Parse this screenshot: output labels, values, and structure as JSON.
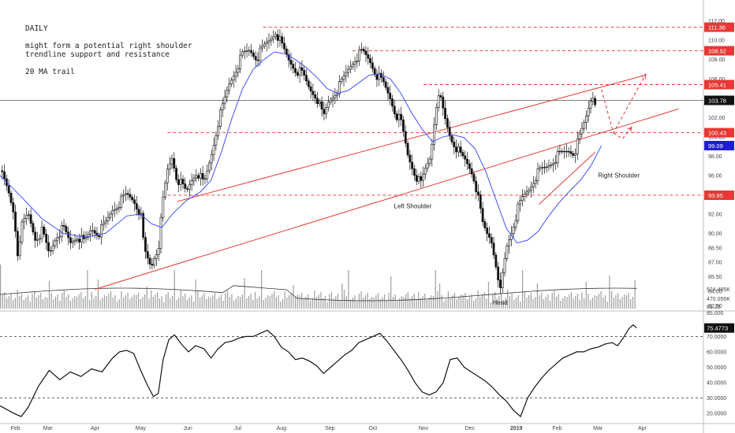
{
  "annotation": {
    "timeframe": "DAILY",
    "line1": "might form a potential right shoulder",
    "line2": "trendline support and resistance",
    "line3": "20 MA trail"
  },
  "chart_data": {
    "type": "candlestick",
    "price_axis": {
      "range": [
        82.2,
        113.2
      ],
      "ticks": [
        "112.00",
        "110.00",
        "108.00",
        "106.00",
        "104.00",
        "102.00",
        "100.00",
        "98.00",
        "96.00",
        "94.00",
        "92.00",
        "90.00",
        "88.50",
        "87.00",
        "85.50",
        "84.00",
        "82.50"
      ],
      "tick_values": [
        112,
        110,
        108,
        106,
        104,
        102,
        100,
        98,
        96,
        94,
        92,
        90,
        88.5,
        87,
        85.5,
        84,
        82.5
      ]
    },
    "volume_axis": {
      "ticks": [
        "524.485K",
        "470.056K"
      ],
      "label_top": "85.000",
      "label_bot": "81.25"
    },
    "rsi_axis": {
      "range": [
        15,
        85
      ],
      "ticks": [
        "75.4773",
        "70.0000",
        "60.0000",
        "50.0000",
        "40.0000",
        "30.0000",
        "20.0000"
      ],
      "tick_values": [
        75.4773,
        70,
        60,
        50,
        40,
        30,
        20
      ],
      "overbought": 70,
      "oversold": 30
    },
    "x_labels": [
      "Feb",
      "Mar",
      "Apr",
      "May",
      "Jun",
      "Jul",
      "Aug",
      "Sep",
      "Oct",
      "Nov",
      "Dec",
      "2019",
      "Feb",
      "Mar",
      "Apr"
    ],
    "x_label_pos": [
      0.022,
      0.068,
      0.135,
      0.2,
      0.267,
      0.338,
      0.4,
      0.469,
      0.53,
      0.602,
      0.668,
      0.734,
      0.792,
      0.85,
      0.913
    ],
    "horizontal_levels": [
      {
        "value": 111.36,
        "label": "111.36",
        "x0": 0.374
      },
      {
        "value": 108.92,
        "label": "108.92",
        "x0": 0.501
      },
      {
        "value": 105.41,
        "label": "105.41",
        "x0": 0.602
      },
      {
        "value": 100.43,
        "label": "100.43",
        "x0": 0.238
      },
      {
        "value": 93.95,
        "label": "93.95",
        "x0": 0.238
      }
    ],
    "current_price": {
      "value": 103.78,
      "label": "103.78"
    },
    "ma_badge": {
      "value": 99.09,
      "label": "99.09"
    },
    "trendlines": [
      {
        "from": [
          0.252,
          93.3
        ],
        "to": [
          0.918,
          106.4
        ],
        "color": "#e53935"
      },
      {
        "from": [
          0.135,
          84.2
        ],
        "to": [
          0.965,
          102.9
        ],
        "color": "#e53935"
      },
      {
        "from": [
          0.766,
          93.0
        ],
        "to": [
          0.846,
          98.4
        ],
        "color": "#e53935"
      }
    ],
    "projections": [
      {
        "points": [
          [
            0.855,
            104.9
          ],
          [
            0.872,
            100.4
          ],
          [
            0.918,
            106.5
          ]
        ],
        "color": "#e53935"
      },
      {
        "points": [
          [
            0.872,
            100.4
          ],
          [
            0.885,
            99.8
          ],
          [
            0.898,
            101.0
          ]
        ],
        "color": "#e53935"
      }
    ],
    "labels": {
      "left_shoulder": "Left Shoulder",
      "head": "Head",
      "right_shoulder": "Right Shoulder"
    },
    "price_path": [
      [
        0.0,
        96.5
      ],
      [
        0.012,
        94.2
      ],
      [
        0.02,
        92.0
      ],
      [
        0.025,
        88.0
      ],
      [
        0.03,
        90.5
      ],
      [
        0.04,
        92.0
      ],
      [
        0.05,
        89.5
      ],
      [
        0.06,
        90.2
      ],
      [
        0.07,
        87.8
      ],
      [
        0.08,
        89.8
      ],
      [
        0.09,
        90.5
      ],
      [
        0.1,
        89.0
      ],
      [
        0.11,
        89.8
      ],
      [
        0.12,
        89.0
      ],
      [
        0.13,
        90.5
      ],
      [
        0.14,
        90.0
      ],
      [
        0.15,
        91.0
      ],
      [
        0.16,
        92.5
      ],
      [
        0.17,
        93.2
      ],
      [
        0.18,
        94.0
      ],
      [
        0.19,
        93.5
      ],
      [
        0.2,
        92.0
      ],
      [
        0.205,
        88.2
      ],
      [
        0.21,
        87.3
      ],
      [
        0.215,
        86.5
      ],
      [
        0.22,
        87.8
      ],
      [
        0.225,
        88.5
      ],
      [
        0.232,
        93.5
      ],
      [
        0.238,
        96.5
      ],
      [
        0.245,
        98.0
      ],
      [
        0.25,
        96.0
      ],
      [
        0.258,
        95.0
      ],
      [
        0.265,
        94.2
      ],
      [
        0.272,
        95.5
      ],
      [
        0.28,
        96.5
      ],
      [
        0.29,
        95.0
      ],
      [
        0.3,
        98.0
      ],
      [
        0.31,
        101.5
      ],
      [
        0.318,
        103.5
      ],
      [
        0.326,
        105.5
      ],
      [
        0.335,
        107.0
      ],
      [
        0.345,
        108.5
      ],
      [
        0.355,
        109.0
      ],
      [
        0.365,
        108.2
      ],
      [
        0.375,
        109.3
      ],
      [
        0.385,
        110.2
      ],
      [
        0.392,
        111.0
      ],
      [
        0.4,
        109.5
      ],
      [
        0.41,
        108.0
      ],
      [
        0.42,
        107.0
      ],
      [
        0.43,
        106.5
      ],
      [
        0.44,
        105.0
      ],
      [
        0.45,
        104.2
      ],
      [
        0.455,
        103.0
      ],
      [
        0.46,
        102.0
      ],
      [
        0.466,
        103.5
      ],
      [
        0.475,
        104.5
      ],
      [
        0.485,
        105.5
      ],
      [
        0.495,
        107.0
      ],
      [
        0.505,
        108.2
      ],
      [
        0.515,
        108.8
      ],
      [
        0.525,
        108.0
      ],
      [
        0.535,
        106.5
      ],
      [
        0.545,
        105.5
      ],
      [
        0.555,
        104.0
      ],
      [
        0.562,
        102.5
      ],
      [
        0.57,
        101.5
      ],
      [
        0.58,
        98.0
      ],
      [
        0.59,
        96.2
      ],
      [
        0.598,
        95.0
      ],
      [
        0.604,
        96.5
      ],
      [
        0.612,
        98.0
      ],
      [
        0.62,
        103.5
      ],
      [
        0.626,
        104.0
      ],
      [
        0.632,
        102.0
      ],
      [
        0.64,
        100.0
      ],
      [
        0.648,
        99.0
      ],
      [
        0.655,
        98.0
      ],
      [
        0.662,
        97.5
      ],
      [
        0.67,
        96.5
      ],
      [
        0.675,
        95.5
      ],
      [
        0.68,
        93.5
      ],
      [
        0.686,
        91.0
      ],
      [
        0.692,
        90.0
      ],
      [
        0.698,
        89.5
      ],
      [
        0.705,
        87.0
      ],
      [
        0.71,
        83.3
      ],
      [
        0.714,
        85.5
      ],
      [
        0.72,
        88.5
      ],
      [
        0.728,
        90.5
      ],
      [
        0.736,
        92.5
      ],
      [
        0.744,
        93.8
      ],
      [
        0.752,
        94.6
      ],
      [
        0.76,
        95.8
      ],
      [
        0.768,
        96.5
      ],
      [
        0.776,
        96.8
      ],
      [
        0.784,
        97.4
      ],
      [
        0.792,
        98.0
      ],
      [
        0.8,
        98.3
      ],
      [
        0.808,
        98.6
      ],
      [
        0.816,
        98.4
      ],
      [
        0.822,
        99.5
      ],
      [
        0.828,
        100.8
      ],
      [
        0.834,
        102.3
      ],
      [
        0.838,
        103.5
      ],
      [
        0.842,
        104.5
      ],
      [
        0.846,
        103.8
      ]
    ],
    "ma_path": [
      [
        0.0,
        96.0
      ],
      [
        0.03,
        93.8
      ],
      [
        0.06,
        91.5
      ],
      [
        0.09,
        90.0
      ],
      [
        0.12,
        89.6
      ],
      [
        0.15,
        90.0
      ],
      [
        0.18,
        91.8
      ],
      [
        0.2,
        92.0
      ],
      [
        0.215,
        91.0
      ],
      [
        0.23,
        90.6
      ],
      [
        0.245,
        92.0
      ],
      [
        0.265,
        93.4
      ],
      [
        0.285,
        94.3
      ],
      [
        0.3,
        95.5
      ],
      [
        0.315,
        98.5
      ],
      [
        0.33,
        102.0
      ],
      [
        0.345,
        105.0
      ],
      [
        0.36,
        107.0
      ],
      [
        0.375,
        108.0
      ],
      [
        0.39,
        108.8
      ],
      [
        0.405,
        108.6
      ],
      [
        0.42,
        108.0
      ],
      [
        0.435,
        107.2
      ],
      [
        0.45,
        106.2
      ],
      [
        0.465,
        105.0
      ],
      [
        0.48,
        104.5
      ],
      [
        0.495,
        104.8
      ],
      [
        0.51,
        105.6
      ],
      [
        0.525,
        106.4
      ],
      [
        0.54,
        106.5
      ],
      [
        0.555,
        106.0
      ],
      [
        0.57,
        104.5
      ],
      [
        0.585,
        102.5
      ],
      [
        0.6,
        100.8
      ],
      [
        0.615,
        99.5
      ],
      [
        0.63,
        100.0
      ],
      [
        0.645,
        100.2
      ],
      [
        0.66,
        99.9
      ],
      [
        0.675,
        98.8
      ],
      [
        0.69,
        96.5
      ],
      [
        0.705,
        93.5
      ],
      [
        0.72,
        90.5
      ],
      [
        0.735,
        89.0
      ],
      [
        0.75,
        89.3
      ],
      [
        0.765,
        90.2
      ],
      [
        0.78,
        91.8
      ],
      [
        0.795,
        93.2
      ],
      [
        0.81,
        94.4
      ],
      [
        0.825,
        95.5
      ],
      [
        0.84,
        97.0
      ],
      [
        0.855,
        99.1
      ]
    ],
    "rsi_path": [
      [
        0.0,
        25
      ],
      [
        0.02,
        20
      ],
      [
        0.03,
        18
      ],
      [
        0.04,
        24
      ],
      [
        0.055,
        38
      ],
      [
        0.07,
        48
      ],
      [
        0.085,
        42
      ],
      [
        0.1,
        47
      ],
      [
        0.115,
        44
      ],
      [
        0.13,
        49
      ],
      [
        0.145,
        47
      ],
      [
        0.16,
        56
      ],
      [
        0.17,
        60
      ],
      [
        0.18,
        61
      ],
      [
        0.19,
        59
      ],
      [
        0.2,
        48
      ],
      [
        0.21,
        38
      ],
      [
        0.218,
        31
      ],
      [
        0.225,
        33
      ],
      [
        0.232,
        55
      ],
      [
        0.24,
        68
      ],
      [
        0.248,
        71
      ],
      [
        0.258,
        65
      ],
      [
        0.268,
        60
      ],
      [
        0.278,
        64
      ],
      [
        0.29,
        62
      ],
      [
        0.3,
        56
      ],
      [
        0.31,
        62
      ],
      [
        0.32,
        66
      ],
      [
        0.33,
        67
      ],
      [
        0.34,
        69
      ],
      [
        0.35,
        70
      ],
      [
        0.36,
        70
      ],
      [
        0.37,
        72
      ],
      [
        0.38,
        74
      ],
      [
        0.39,
        70
      ],
      [
        0.4,
        63
      ],
      [
        0.41,
        60
      ],
      [
        0.42,
        55
      ],
      [
        0.43,
        56
      ],
      [
        0.44,
        54
      ],
      [
        0.45,
        51
      ],
      [
        0.46,
        46
      ],
      [
        0.47,
        50
      ],
      [
        0.48,
        54
      ],
      [
        0.49,
        58
      ],
      [
        0.5,
        61
      ],
      [
        0.51,
        66
      ],
      [
        0.52,
        68
      ],
      [
        0.53,
        70
      ],
      [
        0.54,
        72
      ],
      [
        0.55,
        67
      ],
      [
        0.56,
        61
      ],
      [
        0.57,
        55
      ],
      [
        0.58,
        48
      ],
      [
        0.59,
        40
      ],
      [
        0.6,
        34
      ],
      [
        0.61,
        32
      ],
      [
        0.62,
        34
      ],
      [
        0.63,
        40
      ],
      [
        0.64,
        55
      ],
      [
        0.65,
        56
      ],
      [
        0.66,
        50
      ],
      [
        0.67,
        47
      ],
      [
        0.68,
        44
      ],
      [
        0.69,
        41
      ],
      [
        0.7,
        37
      ],
      [
        0.71,
        32
      ],
      [
        0.72,
        28
      ],
      [
        0.73,
        22
      ],
      [
        0.74,
        18
      ],
      [
        0.75,
        30
      ],
      [
        0.76,
        37
      ],
      [
        0.77,
        43
      ],
      [
        0.78,
        48
      ],
      [
        0.79,
        52
      ],
      [
        0.8,
        56
      ],
      [
        0.81,
        58
      ],
      [
        0.82,
        60
      ],
      [
        0.83,
        60
      ],
      [
        0.84,
        62
      ],
      [
        0.85,
        63
      ],
      [
        0.86,
        65
      ],
      [
        0.87,
        66
      ],
      [
        0.878,
        64
      ],
      [
        0.886,
        69
      ],
      [
        0.894,
        75
      ],
      [
        0.9,
        77.5
      ],
      [
        0.905,
        75.5
      ]
    ]
  }
}
